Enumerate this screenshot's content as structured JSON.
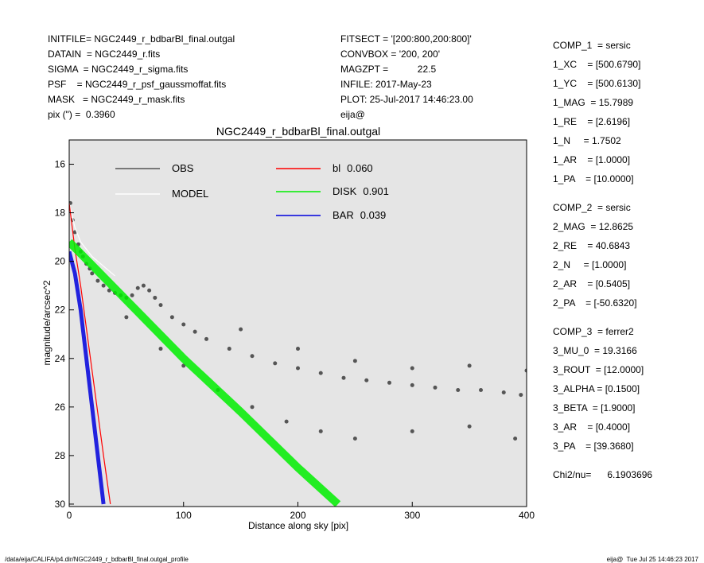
{
  "header": {
    "left": [
      "INITFILE= NGC2449_r_bdbarBl_final.outgal",
      "DATAIN  = NGC2449_r.fits",
      "SIGMA  = NGC2449_r_sigma.fits",
      "PSF    = NGC2449_r_psf_gaussmoffat.fits",
      "MASK   = NGC2449_r_mask.fits",
      "pix (\") =  0.3960"
    ],
    "middle": [
      "FITSECT = '[200:800,200:800]'",
      "CONVBOX = '200, 200'",
      "MAGZPT =           22.5",
      "INFILE: 2017-May-23",
      "PLOT: 25-Jul-2017 14:46:23.00",
      "eija@"
    ]
  },
  "parameters": [
    [
      "COMP_1  = sersic",
      "1_XC    = [500.6790]",
      "1_YC    = [500.6130]",
      "1_MAG  = 15.7989",
      "1_RE    = [2.6196]",
      "1_N     = 1.7502",
      "1_AR    = [1.0000]",
      "1_PA    = [10.0000]"
    ],
    [
      "COMP_2  = sersic",
      "2_MAG  = 12.8625",
      "2_RE    = 40.6843",
      "2_N     = [1.0000]",
      "2_AR    = [0.5405]",
      "2_PA    = [-50.6320]"
    ],
    [
      "COMP_3  = ferrer2",
      "3_MU_0  = 19.3166",
      "3_ROUT  = [12.0000]",
      "3_ALPHA = [0.1500]",
      "3_BETA  = [1.9000]",
      "3_AR    = [0.4000]",
      "3_PA    = [39.3680]"
    ],
    [
      "Chi2/nu=      6.1903696"
    ]
  ],
  "footer": {
    "left": "/data/eija/CALIFA/p4.dir/NGC2449_r_bdbarBl_final.outgal_profile",
    "right": "eija@  Tue Jul 25 14:46:23 2017"
  },
  "chart_data": {
    "type": "scatter",
    "title": "NGC2449_r_bdbarBl_final.outgal",
    "x_label": "Distance along sky [pix]",
    "y_label": "magnitude/arcsec^2",
    "xlim": [
      0,
      400
    ],
    "xticks": [
      0,
      100,
      200,
      300,
      400
    ],
    "ylim": [
      30.1,
      15
    ],
    "yticks": [
      16,
      18,
      20,
      22,
      24,
      26,
      28,
      30
    ],
    "series": [
      {
        "name": "OBS",
        "color": "#555555",
        "draw": "points",
        "x": [
          1,
          3,
          5,
          8,
          10,
          12,
          15,
          18,
          20,
          25,
          30,
          35,
          40,
          45,
          50,
          55,
          60,
          65,
          70,
          75,
          80,
          90,
          100,
          110,
          120,
          140,
          160,
          180,
          200,
          220,
          240,
          260,
          280,
          300,
          320,
          340,
          360,
          380,
          395,
          50,
          80,
          100,
          130,
          160,
          190,
          220,
          250,
          300,
          350,
          390,
          150,
          200,
          250,
          300,
          350,
          400
        ],
        "values": [
          17.6,
          18.3,
          18.8,
          19.3,
          19.6,
          19.8,
          20.1,
          20.3,
          20.5,
          20.8,
          21.0,
          21.2,
          21.3,
          21.4,
          21.5,
          21.4,
          21.1,
          21.0,
          21.2,
          21.5,
          21.8,
          22.3,
          22.6,
          22.9,
          23.2,
          23.6,
          23.9,
          24.2,
          24.4,
          24.6,
          24.8,
          24.9,
          25.0,
          25.1,
          25.2,
          25.3,
          25.3,
          25.4,
          25.5,
          22.3,
          23.6,
          24.3,
          25.3,
          26.0,
          26.6,
          27.0,
          27.3,
          27.0,
          26.8,
          27.3,
          22.8,
          23.6,
          24.1,
          24.4,
          24.3,
          24.5
        ]
      },
      {
        "name": "MODEL",
        "color": "#ffffff",
        "draw": "line",
        "x": [
          0,
          5,
          10,
          20,
          40
        ],
        "values": [
          17.6,
          18.6,
          19.2,
          19.8,
          20.6
        ]
      },
      {
        "name": "bl",
        "fraction": "0.060",
        "color": "#ff0000",
        "draw": "line",
        "x": [
          0,
          5,
          10,
          20,
          30,
          36
        ],
        "values": [
          17.6,
          19.5,
          21.0,
          24.5,
          28.0,
          30.0
        ]
      },
      {
        "name": "DISK",
        "fraction": "0.901",
        "color": "#00ee00",
        "draw": "band",
        "x": [
          0,
          50,
          100,
          150,
          200,
          235
        ],
        "values": [
          19.2,
          21.6,
          24.0,
          26.2,
          28.5,
          30.0
        ]
      },
      {
        "name": "BAR",
        "fraction": "0.039",
        "color": "#0000dd",
        "draw": "band",
        "x": [
          0,
          5,
          10,
          15,
          20,
          25,
          30
        ],
        "values": [
          19.6,
          20.5,
          22.0,
          24.0,
          26.0,
          28.0,
          30.0
        ]
      }
    ]
  }
}
